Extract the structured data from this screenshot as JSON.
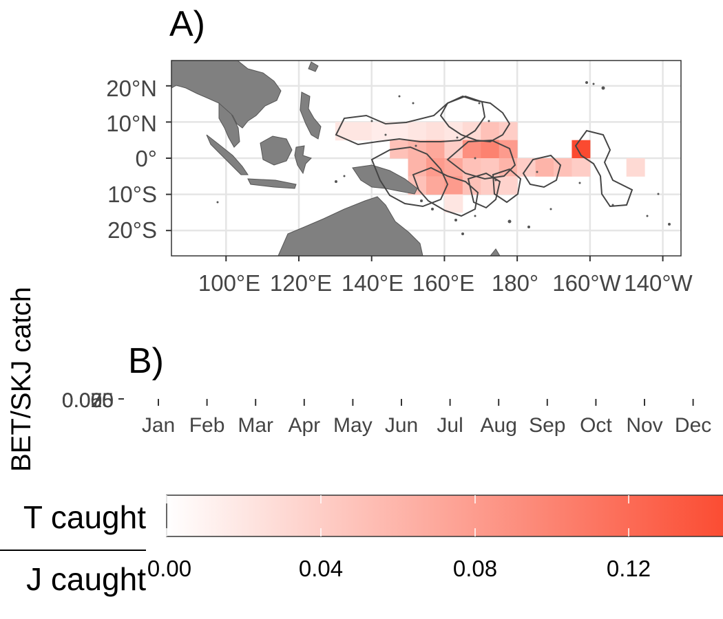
{
  "panel_a": {
    "label": "A)",
    "y_ticks": [
      "20°N",
      "10°N",
      "0°",
      "10°S",
      "20°S"
    ],
    "x_ticks": [
      "100°E",
      "120°E",
      "140°E",
      "160°E",
      "180°",
      "160°W",
      "140°W"
    ]
  },
  "panel_b": {
    "label": "B)",
    "y_tick_overlap": "0.0",
    "y_tick_digits": [
      "00",
      "25",
      "50",
      "75"
    ],
    "months": [
      "Jan",
      "Feb",
      "Mar",
      "Apr",
      "May",
      "Jun",
      "Jul",
      "Aug",
      "Sep",
      "Oct",
      "Nov",
      "Dec"
    ]
  },
  "y_axis_title": "BET/SKJ catch",
  "legend": {
    "title_top": "T caught",
    "title_bottom": "J caught",
    "ticks": [
      "0.00",
      "0.04",
      "0.08",
      "0.12"
    ]
  },
  "colors": {
    "low": "#ffffff",
    "high": "#fb4a30",
    "land": "#808080",
    "grid": "#e5e5e5"
  },
  "chart_data": [
    {
      "type": "heatmap",
      "panel": "A)",
      "x_unit": "degrees longitude (E positive, 180-360 = W)",
      "y_unit": "degrees latitude",
      "xlim": [
        85,
        225
      ],
      "ylim": [
        -27,
        27
      ],
      "x_ticks": [
        100,
        120,
        140,
        160,
        180,
        200,
        220
      ],
      "y_ticks": [
        20,
        10,
        0,
        -10,
        -20
      ],
      "value_range": [
        0,
        0.145
      ],
      "cells_5deg": [
        {
          "lon": 130,
          "lat": 5,
          "v": 0.02
        },
        {
          "lon": 135,
          "lat": 5,
          "v": 0.02
        },
        {
          "lon": 140,
          "lat": 5,
          "v": 0.015
        },
        {
          "lon": 145,
          "lat": 5,
          "v": 0.015
        },
        {
          "lon": 150,
          "lat": 5,
          "v": 0.02
        },
        {
          "lon": 155,
          "lat": 5,
          "v": 0.025
        },
        {
          "lon": 160,
          "lat": 5,
          "v": 0.02
        },
        {
          "lon": 165,
          "lat": 5,
          "v": 0.03
        },
        {
          "lon": 170,
          "lat": 5,
          "v": 0.05
        },
        {
          "lon": 175,
          "lat": 5,
          "v": 0.04
        },
        {
          "lon": 145,
          "lat": 0,
          "v": 0.05
        },
        {
          "lon": 150,
          "lat": 0,
          "v": 0.06
        },
        {
          "lon": 155,
          "lat": 0,
          "v": 0.07
        },
        {
          "lon": 160,
          "lat": 0,
          "v": 0.04
        },
        {
          "lon": 165,
          "lat": 0,
          "v": 0.09
        },
        {
          "lon": 170,
          "lat": 0,
          "v": 0.1
        },
        {
          "lon": 175,
          "lat": 0,
          "v": 0.08
        },
        {
          "lon": 195,
          "lat": 0,
          "v": 0.145
        },
        {
          "lon": 150,
          "lat": -5,
          "v": 0.06
        },
        {
          "lon": 155,
          "lat": -5,
          "v": 0.08
        },
        {
          "lon": 160,
          "lat": -5,
          "v": 0.07
        },
        {
          "lon": 165,
          "lat": -5,
          "v": 0.05
        },
        {
          "lon": 170,
          "lat": -5,
          "v": 0.045
        },
        {
          "lon": 175,
          "lat": -5,
          "v": 0.06
        },
        {
          "lon": 180,
          "lat": -5,
          "v": 0.04
        },
        {
          "lon": 185,
          "lat": -5,
          "v": 0.06
        },
        {
          "lon": 190,
          "lat": -5,
          "v": 0.05
        },
        {
          "lon": 195,
          "lat": -5,
          "v": 0.04
        },
        {
          "lon": 210,
          "lat": -5,
          "v": 0.03
        },
        {
          "lon": 150,
          "lat": -10,
          "v": 0.05
        },
        {
          "lon": 155,
          "lat": -10,
          "v": 0.07
        },
        {
          "lon": 160,
          "lat": -10,
          "v": 0.08
        },
        {
          "lon": 165,
          "lat": -10,
          "v": 0.05
        },
        {
          "lon": 170,
          "lat": -10,
          "v": 0.04
        },
        {
          "lon": 175,
          "lat": -10,
          "v": 0.035
        },
        {
          "lon": 160,
          "lat": -15,
          "v": 0.02
        }
      ]
    },
    {
      "type": "line",
      "panel": "B)",
      "categories": [
        "Jan",
        "Feb",
        "Mar",
        "Apr",
        "May",
        "Jun",
        "Jul",
        "Aug",
        "Sep",
        "Oct",
        "Nov",
        "Dec"
      ],
      "y_ticks": [
        0.0,
        0.025,
        0.05,
        0.075
      ],
      "series": []
    }
  ]
}
